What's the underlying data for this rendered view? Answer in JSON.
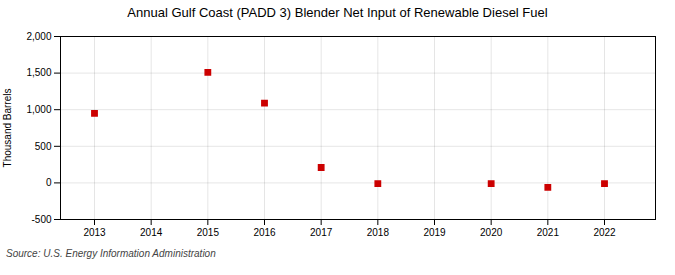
{
  "chart_data": {
    "type": "scatter",
    "title": "Annual Gulf Coast (PADD 3) Blender Net Input of Renewable Diesel Fuel",
    "ylabel": "Thousand Barrels",
    "source": "Source: U.S. Energy Information Administration",
    "x": [
      2013,
      2015,
      2016,
      2017,
      2018,
      2020,
      2021,
      2022
    ],
    "values": [
      950,
      1510,
      1090,
      210,
      -10,
      -10,
      -60,
      -10
    ],
    "color": "#cc0000",
    "marker": "square",
    "xlim": [
      2012.4,
      2022.9
    ],
    "ylim": [
      -500,
      2000
    ],
    "xticks": [
      2013,
      2014,
      2015,
      2016,
      2017,
      2018,
      2019,
      2020,
      2021,
      2022
    ],
    "yticks": [
      -500,
      0,
      500,
      {
        "value": 1000,
        "label": "1,000"
      },
      {
        "value": 1500,
        "label": "1,500"
      },
      {
        "value": 2000,
        "label": "2,000"
      }
    ],
    "grid": true
  }
}
